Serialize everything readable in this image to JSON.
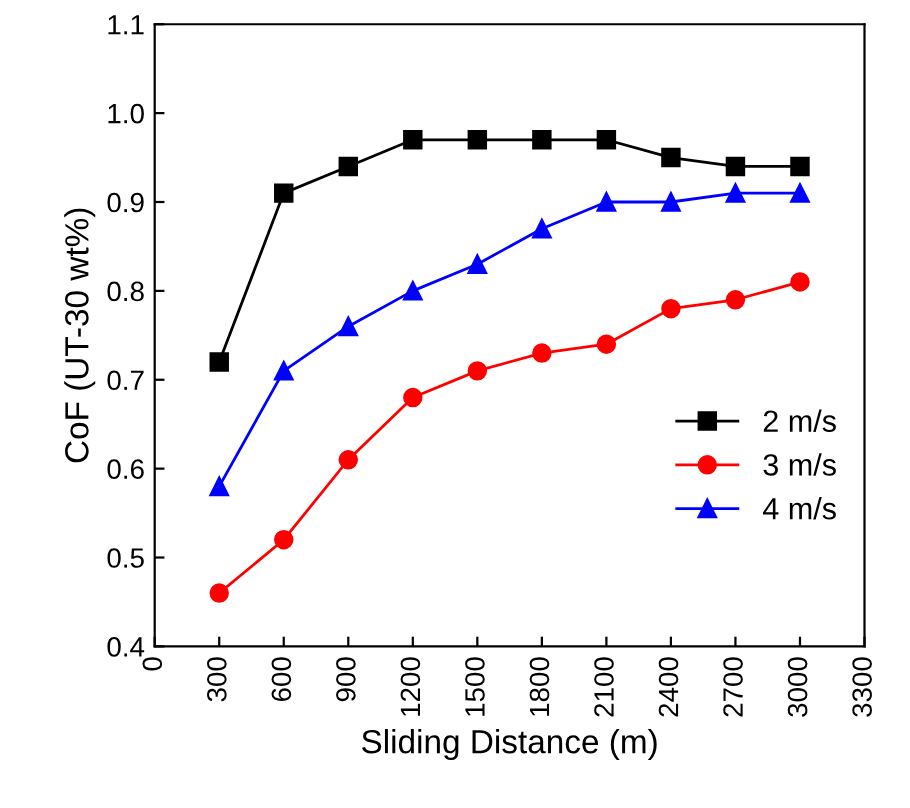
{
  "chart_data": {
    "type": "line",
    "xlabel": "Sliding Distance (m)",
    "ylabel": "CoF (UT-30 wt%)",
    "x": [
      300,
      600,
      900,
      1200,
      1500,
      1800,
      2100,
      2400,
      2700,
      3000
    ],
    "series": [
      {
        "name": "2 m/s",
        "color": "#000000",
        "marker": "square",
        "values": [
          0.72,
          0.91,
          0.94,
          0.97,
          0.97,
          0.97,
          0.97,
          0.95,
          0.94,
          0.94
        ]
      },
      {
        "name": "3 m/s",
        "color": "#ff0000",
        "marker": "circle",
        "values": [
          0.46,
          0.52,
          0.61,
          0.68,
          0.71,
          0.73,
          0.74,
          0.78,
          0.79,
          0.81
        ]
      },
      {
        "name": "4 m/s",
        "color": "#0000ff",
        "marker": "triangle",
        "values": [
          0.58,
          0.71,
          0.76,
          0.8,
          0.83,
          0.87,
          0.9,
          0.9,
          0.91,
          0.91
        ]
      }
    ],
    "xlim": [
      0,
      3300
    ],
    "xticks": [
      0,
      300,
      600,
      900,
      1200,
      1500,
      1800,
      2100,
      2400,
      2700,
      3000,
      3300
    ],
    "ylim": [
      0.4,
      1.1
    ],
    "yticks": [
      {
        "value": 0.4,
        "label": "0.4"
      },
      {
        "value": 0.5,
        "label": "0.5"
      },
      {
        "value": 0.6,
        "label": "0.6"
      },
      {
        "value": 0.7,
        "label": "0.7"
      },
      {
        "value": 0.8,
        "label": "0.8"
      },
      {
        "value": 0.9,
        "label": "0.9"
      },
      {
        "value": 1.0,
        "label": "1.0"
      },
      {
        "value": 1.1,
        "label": "1.1"
      }
    ],
    "grid": false,
    "legend": "bottom right",
    "line_style": "solid"
  }
}
